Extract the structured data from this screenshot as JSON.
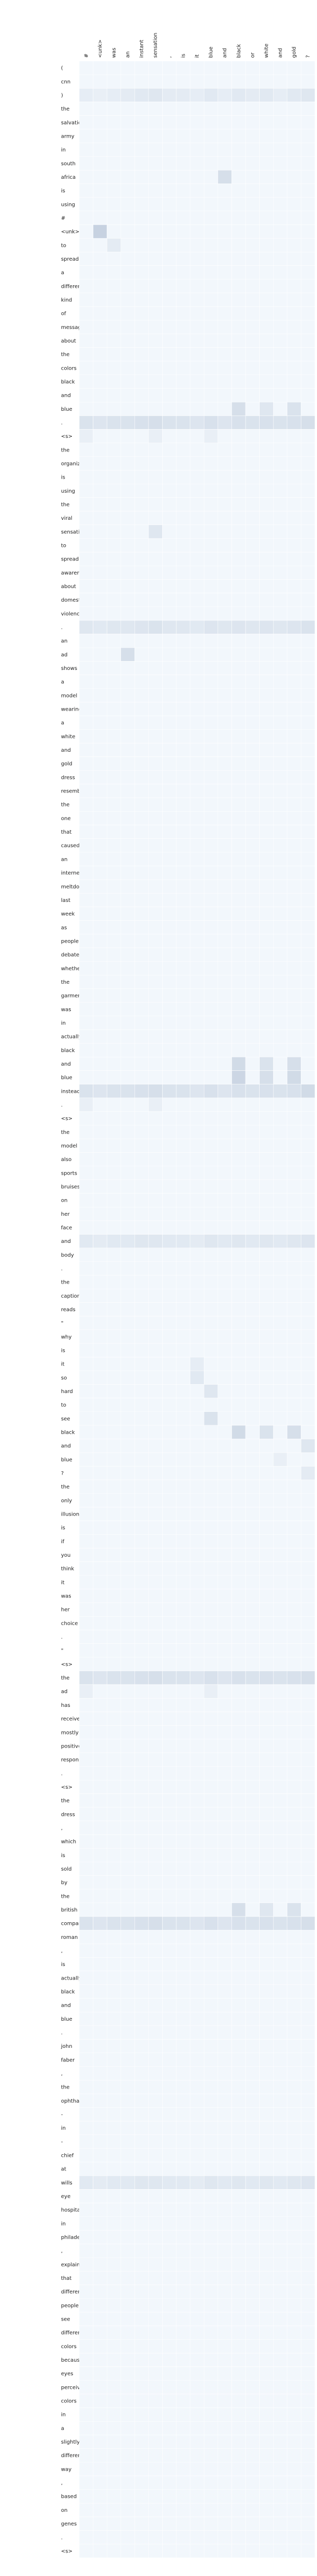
{
  "chart_data": {
    "type": "heatmap",
    "title": "",
    "xlabel": "",
    "ylabel": "",
    "x_tokens": [
      "#",
      "<unk>",
      "was",
      "an",
      "instant",
      "sensation",
      ",",
      "is",
      "it",
      "blue",
      "and",
      "black",
      "or",
      "white",
      "and",
      "gold",
      "?"
    ],
    "y_tokens": [
      "(",
      "cnn",
      ")",
      "the",
      "salvation",
      "army",
      "in",
      "south",
      "africa",
      "is",
      "using",
      "#",
      "<unk>",
      "to",
      "spread",
      "a",
      "different",
      "kind",
      "of",
      "message",
      "about",
      "the",
      "colors",
      "black",
      "and",
      "blue",
      ".",
      "<s>",
      "the",
      "organization",
      "is",
      "using",
      "the",
      "viral",
      "sensation",
      "to",
      "spread",
      "awareness",
      "about",
      "domestic",
      "violence",
      ".",
      "an",
      "ad",
      "shows",
      "a",
      "model",
      "wearing",
      "a",
      "white",
      "and",
      "gold",
      "dress",
      "resembling",
      "the",
      "one",
      "that",
      "caused",
      "an",
      "internet",
      "meltdown",
      "last",
      "week",
      "as",
      "people",
      "debated",
      "whether",
      "the",
      "garment",
      "was",
      "in",
      "actually",
      "black",
      "and",
      "blue",
      "instead",
      ".",
      "<s>",
      "the",
      "model",
      "also",
      "sports",
      "bruises",
      "on",
      "her",
      "face",
      "and",
      "body",
      ".",
      "the",
      "caption",
      "reads",
      "\"",
      "why",
      "is",
      "it",
      "so",
      "hard",
      "to",
      "see",
      "black",
      "and",
      "blue",
      "?",
      "the",
      "only",
      "illusion",
      "is",
      "if",
      "you",
      "think",
      "it",
      "was",
      "her",
      "choice",
      ".",
      "\"",
      "<s>",
      "the",
      "ad",
      "has",
      "received",
      "mostly",
      "positive",
      "response",
      ".",
      "<s>",
      "the",
      "dress",
      ",",
      "which",
      "is",
      "sold",
      "by",
      "the",
      "british",
      "company",
      "roman",
      ",",
      "is",
      "actually",
      "black",
      "and",
      "blue",
      ".",
      "john",
      "faber",
      ",",
      "the",
      "ophthalmologist",
      "-",
      "in",
      "-",
      "chief",
      "at",
      "wills",
      "eye",
      "hospital",
      "in",
      "philadelphia",
      ",",
      "explained",
      "that",
      "different",
      "people",
      "see",
      "different",
      "colors",
      "because",
      "eyes",
      "perceive",
      "colors",
      "in",
      "a",
      "slightly",
      "different",
      "way",
      ",",
      "based",
      "on",
      "genes",
      ".",
      "<s>"
    ],
    "value_range": [
      0,
      1
    ],
    "colormap": "Blues",
    "default_value": 0.02,
    "highlights": [
      {
        "row": 2,
        "col": 0,
        "value": 0.07
      },
      {
        "row": 2,
        "col": 1,
        "value": 0.06
      },
      {
        "row": 2,
        "col": 2,
        "value": 0.07
      },
      {
        "row": 2,
        "col": 3,
        "value": 0.08
      },
      {
        "row": 2,
        "col": 4,
        "value": 0.09
      },
      {
        "row": 2,
        "col": 5,
        "value": 0.1
      },
      {
        "row": 2,
        "col": 6,
        "value": 0.08
      },
      {
        "row": 2,
        "col": 7,
        "value": 0.08
      },
      {
        "row": 2,
        "col": 8,
        "value": 0.07
      },
      {
        "row": 2,
        "col": 9,
        "value": 0.09
      },
      {
        "row": 2,
        "col": 10,
        "value": 0.07
      },
      {
        "row": 2,
        "col": 11,
        "value": 0.09
      },
      {
        "row": 2,
        "col": 12,
        "value": 0.08
      },
      {
        "row": 2,
        "col": 13,
        "value": 0.09
      },
      {
        "row": 2,
        "col": 14,
        "value": 0.07
      },
      {
        "row": 2,
        "col": 15,
        "value": 0.09
      },
      {
        "row": 2,
        "col": 16,
        "value": 0.1
      },
      {
        "row": 8,
        "col": 10,
        "value": 0.14
      },
      {
        "row": 12,
        "col": 1,
        "value": 0.2
      },
      {
        "row": 13,
        "col": 2,
        "value": 0.08
      },
      {
        "row": 25,
        "col": 11,
        "value": 0.14
      },
      {
        "row": 25,
        "col": 13,
        "value": 0.1
      },
      {
        "row": 25,
        "col": 15,
        "value": 0.12
      },
      {
        "row": 26,
        "col": 0,
        "value": 0.12
      },
      {
        "row": 26,
        "col": 1,
        "value": 0.11
      },
      {
        "row": 26,
        "col": 2,
        "value": 0.12
      },
      {
        "row": 26,
        "col": 3,
        "value": 0.12
      },
      {
        "row": 26,
        "col": 4,
        "value": 0.13
      },
      {
        "row": 26,
        "col": 5,
        "value": 0.14
      },
      {
        "row": 26,
        "col": 6,
        "value": 0.12
      },
      {
        "row": 26,
        "col": 7,
        "value": 0.12
      },
      {
        "row": 26,
        "col": 8,
        "value": 0.11
      },
      {
        "row": 26,
        "col": 9,
        "value": 0.13
      },
      {
        "row": 26,
        "col": 10,
        "value": 0.11
      },
      {
        "row": 26,
        "col": 11,
        "value": 0.13
      },
      {
        "row": 26,
        "col": 12,
        "value": 0.12
      },
      {
        "row": 26,
        "col": 13,
        "value": 0.13
      },
      {
        "row": 26,
        "col": 14,
        "value": 0.12
      },
      {
        "row": 26,
        "col": 15,
        "value": 0.13
      },
      {
        "row": 26,
        "col": 16,
        "value": 0.14
      },
      {
        "row": 27,
        "col": 0,
        "value": 0.06
      },
      {
        "row": 27,
        "col": 5,
        "value": 0.06
      },
      {
        "row": 27,
        "col": 9,
        "value": 0.06
      },
      {
        "row": 34,
        "col": 5,
        "value": 0.1
      },
      {
        "row": 41,
        "col": 0,
        "value": 0.1
      },
      {
        "row": 41,
        "col": 1,
        "value": 0.09
      },
      {
        "row": 41,
        "col": 2,
        "value": 0.1
      },
      {
        "row": 41,
        "col": 3,
        "value": 0.1
      },
      {
        "row": 41,
        "col": 4,
        "value": 0.11
      },
      {
        "row": 41,
        "col": 5,
        "value": 0.12
      },
      {
        "row": 41,
        "col": 6,
        "value": 0.1
      },
      {
        "row": 41,
        "col": 7,
        "value": 0.1
      },
      {
        "row": 41,
        "col": 8,
        "value": 0.09
      },
      {
        "row": 41,
        "col": 9,
        "value": 0.11
      },
      {
        "row": 41,
        "col": 10,
        "value": 0.1
      },
      {
        "row": 41,
        "col": 11,
        "value": 0.11
      },
      {
        "row": 41,
        "col": 12,
        "value": 0.1
      },
      {
        "row": 41,
        "col": 13,
        "value": 0.11
      },
      {
        "row": 41,
        "col": 14,
        "value": 0.1
      },
      {
        "row": 41,
        "col": 15,
        "value": 0.11
      },
      {
        "row": 41,
        "col": 16,
        "value": 0.12
      },
      {
        "row": 43,
        "col": 3,
        "value": 0.14
      },
      {
        "row": 73,
        "col": 11,
        "value": 0.16
      },
      {
        "row": 73,
        "col": 13,
        "value": 0.12
      },
      {
        "row": 73,
        "col": 15,
        "value": 0.14
      },
      {
        "row": 74,
        "col": 11,
        "value": 0.18
      },
      {
        "row": 74,
        "col": 13,
        "value": 0.14
      },
      {
        "row": 74,
        "col": 15,
        "value": 0.16
      },
      {
        "row": 75,
        "col": 0,
        "value": 0.12
      },
      {
        "row": 75,
        "col": 1,
        "value": 0.11
      },
      {
        "row": 75,
        "col": 2,
        "value": 0.12
      },
      {
        "row": 75,
        "col": 3,
        "value": 0.12
      },
      {
        "row": 75,
        "col": 4,
        "value": 0.13
      },
      {
        "row": 75,
        "col": 5,
        "value": 0.14
      },
      {
        "row": 75,
        "col": 6,
        "value": 0.12
      },
      {
        "row": 75,
        "col": 7,
        "value": 0.12
      },
      {
        "row": 75,
        "col": 8,
        "value": 0.11
      },
      {
        "row": 75,
        "col": 9,
        "value": 0.13
      },
      {
        "row": 75,
        "col": 10,
        "value": 0.11
      },
      {
        "row": 75,
        "col": 11,
        "value": 0.13
      },
      {
        "row": 75,
        "col": 12,
        "value": 0.12
      },
      {
        "row": 75,
        "col": 13,
        "value": 0.13
      },
      {
        "row": 75,
        "col": 14,
        "value": 0.12
      },
      {
        "row": 75,
        "col": 15,
        "value": 0.13
      },
      {
        "row": 75,
        "col": 16,
        "value": 0.16
      },
      {
        "row": 76,
        "col": 0,
        "value": 0.06
      },
      {
        "row": 76,
        "col": 5,
        "value": 0.06
      },
      {
        "row": 86,
        "col": 0,
        "value": 0.09
      },
      {
        "row": 86,
        "col": 1,
        "value": 0.08
      },
      {
        "row": 86,
        "col": 2,
        "value": 0.09
      },
      {
        "row": 86,
        "col": 3,
        "value": 0.09
      },
      {
        "row": 86,
        "col": 4,
        "value": 0.1
      },
      {
        "row": 86,
        "col": 5,
        "value": 0.1
      },
      {
        "row": 86,
        "col": 6,
        "value": 0.09
      },
      {
        "row": 86,
        "col": 7,
        "value": 0.09
      },
      {
        "row": 86,
        "col": 8,
        "value": 0.08
      },
      {
        "row": 86,
        "col": 9,
        "value": 0.1
      },
      {
        "row": 86,
        "col": 10,
        "value": 0.09
      },
      {
        "row": 86,
        "col": 11,
        "value": 0.1
      },
      {
        "row": 86,
        "col": 12,
        "value": 0.09
      },
      {
        "row": 86,
        "col": 13,
        "value": 0.1
      },
      {
        "row": 86,
        "col": 14,
        "value": 0.09
      },
      {
        "row": 86,
        "col": 15,
        "value": 0.1
      },
      {
        "row": 86,
        "col": 16,
        "value": 0.11
      },
      {
        "row": 95,
        "col": 8,
        "value": 0.07
      },
      {
        "row": 96,
        "col": 8,
        "value": 0.09
      },
      {
        "row": 97,
        "col": 9,
        "value": 0.1
      },
      {
        "row": 99,
        "col": 9,
        "value": 0.12
      },
      {
        "row": 100,
        "col": 11,
        "value": 0.16
      },
      {
        "row": 100,
        "col": 13,
        "value": 0.12
      },
      {
        "row": 100,
        "col": 15,
        "value": 0.14
      },
      {
        "row": 101,
        "col": 16,
        "value": 0.1
      },
      {
        "row": 103,
        "col": 16,
        "value": 0.08
      },
      {
        "row": 102,
        "col": 14,
        "value": 0.06
      },
      {
        "row": 118,
        "col": 0,
        "value": 0.12
      },
      {
        "row": 118,
        "col": 1,
        "value": 0.11
      },
      {
        "row": 118,
        "col": 2,
        "value": 0.12
      },
      {
        "row": 118,
        "col": 3,
        "value": 0.12
      },
      {
        "row": 118,
        "col": 4,
        "value": 0.13
      },
      {
        "row": 118,
        "col": 5,
        "value": 0.14
      },
      {
        "row": 118,
        "col": 6,
        "value": 0.12
      },
      {
        "row": 118,
        "col": 7,
        "value": 0.12
      },
      {
        "row": 118,
        "col": 8,
        "value": 0.11
      },
      {
        "row": 118,
        "col": 9,
        "value": 0.13
      },
      {
        "row": 118,
        "col": 10,
        "value": 0.11
      },
      {
        "row": 118,
        "col": 11,
        "value": 0.13
      },
      {
        "row": 118,
        "col": 12,
        "value": 0.12
      },
      {
        "row": 118,
        "col": 13,
        "value": 0.13
      },
      {
        "row": 118,
        "col": 14,
        "value": 0.12
      },
      {
        "row": 118,
        "col": 15,
        "value": 0.13
      },
      {
        "row": 118,
        "col": 16,
        "value": 0.14
      },
      {
        "row": 119,
        "col": 0,
        "value": 0.06
      },
      {
        "row": 119,
        "col": 9,
        "value": 0.06
      },
      {
        "row": 135,
        "col": 11,
        "value": 0.14
      },
      {
        "row": 135,
        "col": 13,
        "value": 0.1
      },
      {
        "row": 135,
        "col": 15,
        "value": 0.12
      },
      {
        "row": 136,
        "col": 0,
        "value": 0.12
      },
      {
        "row": 136,
        "col": 1,
        "value": 0.11
      },
      {
        "row": 136,
        "col": 2,
        "value": 0.12
      },
      {
        "row": 136,
        "col": 3,
        "value": 0.12
      },
      {
        "row": 136,
        "col": 4,
        "value": 0.13
      },
      {
        "row": 136,
        "col": 5,
        "value": 0.14
      },
      {
        "row": 136,
        "col": 6,
        "value": 0.12
      },
      {
        "row": 136,
        "col": 7,
        "value": 0.12
      },
      {
        "row": 136,
        "col": 8,
        "value": 0.11
      },
      {
        "row": 136,
        "col": 9,
        "value": 0.13
      },
      {
        "row": 136,
        "col": 10,
        "value": 0.11
      },
      {
        "row": 136,
        "col": 11,
        "value": 0.13
      },
      {
        "row": 136,
        "col": 12,
        "value": 0.12
      },
      {
        "row": 136,
        "col": 13,
        "value": 0.13
      },
      {
        "row": 136,
        "col": 14,
        "value": 0.12
      },
      {
        "row": 136,
        "col": 15,
        "value": 0.13
      },
      {
        "row": 136,
        "col": 16,
        "value": 0.14
      },
      {
        "row": 155,
        "col": 0,
        "value": 0.09
      },
      {
        "row": 155,
        "col": 1,
        "value": 0.08
      },
      {
        "row": 155,
        "col": 2,
        "value": 0.09
      },
      {
        "row": 155,
        "col": 3,
        "value": 0.09
      },
      {
        "row": 155,
        "col": 4,
        "value": 0.1
      },
      {
        "row": 155,
        "col": 5,
        "value": 0.1
      },
      {
        "row": 155,
        "col": 6,
        "value": 0.09
      },
      {
        "row": 155,
        "col": 7,
        "value": 0.09
      },
      {
        "row": 155,
        "col": 8,
        "value": 0.08
      },
      {
        "row": 155,
        "col": 9,
        "value": 0.1
      },
      {
        "row": 155,
        "col": 10,
        "value": 0.09
      },
      {
        "row": 155,
        "col": 11,
        "value": 0.1
      },
      {
        "row": 155,
        "col": 12,
        "value": 0.09
      },
      {
        "row": 155,
        "col": 13,
        "value": 0.1
      },
      {
        "row": 155,
        "col": 14,
        "value": 0.09
      },
      {
        "row": 155,
        "col": 15,
        "value": 0.1
      },
      {
        "row": 155,
        "col": 16,
        "value": 0.11
      }
    ]
  }
}
